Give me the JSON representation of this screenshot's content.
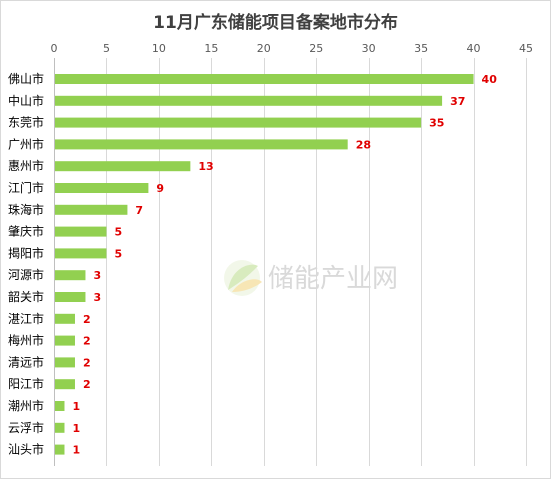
{
  "chart_data": {
    "type": "bar",
    "orientation": "horizontal",
    "title": "11月广东储能项目备案地市分布",
    "xlabel": "",
    "ylabel": "",
    "xlim": [
      0,
      45
    ],
    "xticks": [
      0,
      5,
      10,
      15,
      20,
      25,
      30,
      35,
      40,
      45
    ],
    "xaxis_position": "top",
    "grid": true,
    "legend": "none",
    "bar_color": "#92d050",
    "label_color": "#e00000",
    "categories": [
      "佛山市",
      "中山市",
      "东莞市",
      "广州市",
      "惠州市",
      "江门市",
      "珠海市",
      "肇庆市",
      "揭阳市",
      "河源市",
      "韶关市",
      "湛江市",
      "梅州市",
      "清远市",
      "阳江市",
      "潮州市",
      "云浮市",
      "汕头市"
    ],
    "values": [
      40,
      37,
      35,
      28,
      13,
      9,
      7,
      5,
      5,
      3,
      3,
      2,
      2,
      2,
      2,
      1,
      1,
      1
    ]
  },
  "watermark": {
    "text": "储能产业网",
    "icon": "leaf-logo-icon"
  }
}
